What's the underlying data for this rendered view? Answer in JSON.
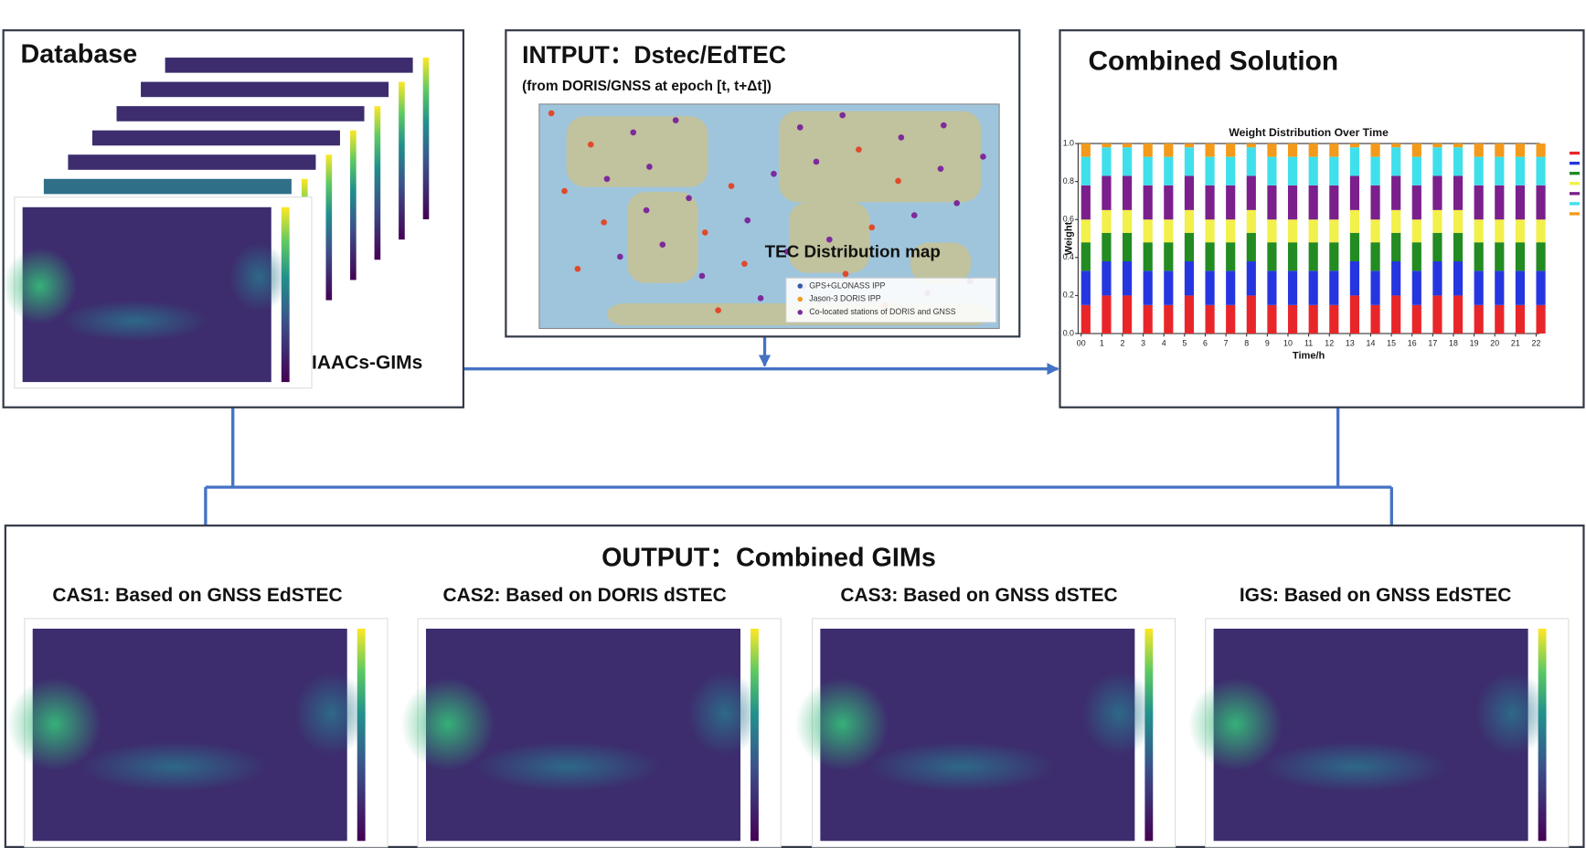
{
  "database": {
    "title": "Database",
    "label": "IAACs-GIMs"
  },
  "input": {
    "title": "INTPUT：Dstec/EdTEC",
    "subtitle": "(from DORIS/GNSS at epoch [t, t+Δt])",
    "map_label": "TEC Distribution map",
    "legend": [
      "GPS+GLONASS IPP",
      "Jason-3 DORIS IPP",
      "Co-located stations of DORIS and GNSS"
    ]
  },
  "combined": {
    "title": "Combined Solution",
    "chart_data": {
      "type": "bar",
      "stacked": true,
      "title": "Weight Distribution Over Time",
      "x_label": "Time/h",
      "y_label": "Weight",
      "categories": [
        "00",
        "1",
        "2",
        "3",
        "4",
        "5",
        "6",
        "7",
        "8",
        "9",
        "10",
        "11",
        "12",
        "13",
        "14",
        "15",
        "16",
        "17",
        "18",
        "19",
        "20",
        "21",
        "22"
      ],
      "ylim": [
        0,
        1
      ],
      "yticks": [
        {
          "value": 0,
          "label": "0.0"
        },
        {
          "value": 0.2,
          "label": "0.2"
        },
        {
          "value": 0.4,
          "label": "0.4"
        },
        {
          "value": 0.6,
          "label": "0.6"
        },
        {
          "value": 0.8,
          "label": "0.8"
        },
        {
          "value": 1,
          "label": "1.0"
        }
      ],
      "series": [
        {
          "color": "#e8262a",
          "values": [
            0.15,
            0.2,
            0.2,
            0.15,
            0.15,
            0.2,
            0.15,
            0.15,
            0.2,
            0.15,
            0.15,
            0.15,
            0.15,
            0.2,
            0.15,
            0.2,
            0.15,
            0.2,
            0.2,
            0.15,
            0.15,
            0.15,
            0.15
          ]
        },
        {
          "color": "#2536e0",
          "values": [
            0.18,
            0.18,
            0.18,
            0.18,
            0.18,
            0.18,
            0.18,
            0.18,
            0.18,
            0.18,
            0.18,
            0.18,
            0.18,
            0.18,
            0.18,
            0.18,
            0.18,
            0.18,
            0.18,
            0.18,
            0.18,
            0.18,
            0.18
          ]
        },
        {
          "color": "#228b22",
          "values": [
            0.15,
            0.15,
            0.15,
            0.15,
            0.15,
            0.15,
            0.15,
            0.15,
            0.15,
            0.15,
            0.15,
            0.15,
            0.15,
            0.15,
            0.15,
            0.15,
            0.15,
            0.15,
            0.15,
            0.15,
            0.15,
            0.15,
            0.15
          ]
        },
        {
          "color": "#f2f04a",
          "values": [
            0.12,
            0.12,
            0.12,
            0.12,
            0.12,
            0.12,
            0.12,
            0.12,
            0.12,
            0.12,
            0.12,
            0.12,
            0.12,
            0.12,
            0.12,
            0.12,
            0.12,
            0.12,
            0.12,
            0.12,
            0.12,
            0.12,
            0.12
          ]
        },
        {
          "color": "#7b1f8c",
          "values": [
            0.18,
            0.18,
            0.18,
            0.18,
            0.18,
            0.18,
            0.18,
            0.18,
            0.18,
            0.18,
            0.18,
            0.18,
            0.18,
            0.18,
            0.18,
            0.18,
            0.18,
            0.18,
            0.18,
            0.18,
            0.18,
            0.18,
            0.18
          ]
        },
        {
          "color": "#3fe0ec",
          "values": [
            0.15,
            0.15,
            0.15,
            0.15,
            0.15,
            0.15,
            0.15,
            0.15,
            0.15,
            0.15,
            0.15,
            0.15,
            0.15,
            0.15,
            0.15,
            0.15,
            0.15,
            0.15,
            0.15,
            0.15,
            0.15,
            0.15,
            0.15
          ]
        },
        {
          "color": "#f39a1c",
          "values": [
            0.07,
            0.02,
            0.02,
            0.07,
            0.07,
            0.02,
            0.07,
            0.07,
            0.02,
            0.07,
            0.07,
            0.07,
            0.07,
            0.02,
            0.07,
            0.02,
            0.07,
            0.02,
            0.02,
            0.07,
            0.07,
            0.07,
            0.07
          ]
        }
      ]
    }
  },
  "output": {
    "title": "OUTPUT：Combined GIMs",
    "panels": [
      "CAS1: Based on GNSS EdSTEC",
      "CAS2: Based on DORIS dSTEC",
      "CAS3: Based on GNSS dSTEC",
      "IGS: Based on GNSS EdSTEC"
    ]
  }
}
